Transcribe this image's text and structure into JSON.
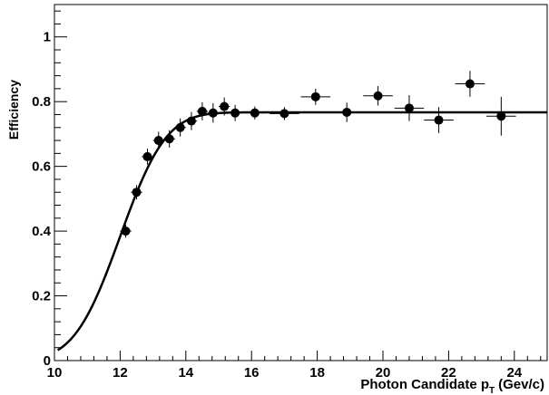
{
  "chart_data": {
    "type": "scatter",
    "title": "",
    "xlabel": "Photon Candidate p",
    "xlabel_sub": "T",
    "xlabel_unit": "(Gev/c)",
    "ylabel": "Efficiency",
    "xlim": [
      10,
      25
    ],
    "ylim": [
      0,
      1.1
    ],
    "x_ticks": [
      10,
      12,
      14,
      16,
      18,
      20,
      22,
      24
    ],
    "y_ticks": [
      0,
      0.2,
      0.4,
      0.6,
      0.8,
      1
    ],
    "x_tick_labels": [
      "10",
      "12",
      "14",
      "16",
      "18",
      "20",
      "22",
      "24"
    ],
    "y_tick_labels": [
      "0",
      "0.2",
      "0.4",
      "0.6",
      "0.8",
      "1"
    ],
    "grid": false,
    "legend": "none",
    "series": [
      {
        "kind": "points-with-errors",
        "x": [
          12.17,
          12.5,
          12.83,
          13.17,
          13.5,
          13.83,
          14.17,
          14.5,
          14.83,
          15.17,
          15.5,
          16.1,
          17.0,
          17.95,
          18.9,
          19.85,
          20.8,
          21.7,
          22.65,
          23.6
        ],
        "y": [
          0.4,
          0.52,
          0.63,
          0.68,
          0.685,
          0.72,
          0.74,
          0.77,
          0.765,
          0.785,
          0.765,
          0.765,
          0.763,
          0.815,
          0.767,
          0.818,
          0.78,
          0.743,
          0.855,
          0.755
        ],
        "xerr": [
          0.17,
          0.17,
          0.17,
          0.17,
          0.17,
          0.17,
          0.17,
          0.17,
          0.17,
          0.17,
          0.17,
          0.3,
          0.45,
          0.45,
          0.45,
          0.45,
          0.45,
          0.45,
          0.45,
          0.45
        ],
        "yerr": [
          0.02,
          0.022,
          0.025,
          0.027,
          0.027,
          0.028,
          0.028,
          0.028,
          0.03,
          0.028,
          0.025,
          0.02,
          0.02,
          0.025,
          0.03,
          0.03,
          0.04,
          0.04,
          0.04,
          0.06
        ]
      },
      {
        "kind": "fit-curve",
        "function": "erf",
        "plateau": 0.767,
        "mean": 12.0,
        "sigma": 1.1,
        "x_range": [
          10.1,
          25
        ]
      }
    ],
    "colors": {
      "marker": "#000000",
      "curve": "#000000",
      "frame": "#000000"
    }
  }
}
